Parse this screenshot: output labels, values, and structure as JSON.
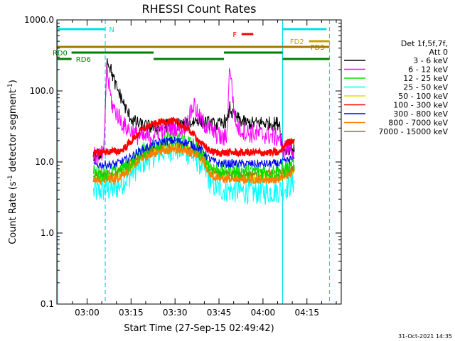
{
  "chart_data": {
    "type": "line",
    "title": "RHESSI Count Rates",
    "xlabel": "Start Time (27-Sep-15 02:49:42)",
    "ylabel_main": "Count Rate (s",
    "ylabel_sup1": "-1",
    "ylabel_mid": " detector segment",
    "ylabel_sup2": "-1",
    "ylabel_end": ")",
    "y_scale": "log",
    "ylim": [
      0.1,
      1000
    ],
    "xlim_minutes": [
      0,
      97
    ],
    "y_ticks": [
      {
        "value": 0.1,
        "label": "0.1"
      },
      {
        "value": 1,
        "label": "1.0"
      },
      {
        "value": 10,
        "label": "10.0"
      },
      {
        "value": 100,
        "label": "100.0"
      },
      {
        "value": 1000,
        "label": "1000.0"
      }
    ],
    "x_ticks": [
      {
        "minute": 10.3,
        "label": "03:00"
      },
      {
        "minute": 25.3,
        "label": "03:15"
      },
      {
        "minute": 40.3,
        "label": "03:30"
      },
      {
        "minute": 55.3,
        "label": "03:45"
      },
      {
        "minute": 70.3,
        "label": "04:00"
      },
      {
        "minute": 85.3,
        "label": "04:15"
      }
    ],
    "legend_header": [
      "Det 1f,5f,7f,",
      "Att 0"
    ],
    "legend_placement": "right",
    "series": [
      {
        "name": "3 - 6 keV",
        "color": "#000000",
        "points": [
          [
            12.5,
            12
          ],
          [
            13,
            13
          ],
          [
            15,
            12.5
          ],
          [
            16,
            13
          ],
          [
            17,
            280
          ],
          [
            18,
            230
          ],
          [
            20,
            120
          ],
          [
            22,
            80
          ],
          [
            24,
            50
          ],
          [
            26,
            38
          ],
          [
            28,
            34
          ],
          [
            30,
            32
          ],
          [
            32,
            31
          ],
          [
            34,
            30
          ],
          [
            36,
            31
          ],
          [
            38,
            33
          ],
          [
            40,
            35
          ],
          [
            42,
            34
          ],
          [
            44,
            33
          ],
          [
            46,
            36
          ],
          [
            48,
            40
          ],
          [
            50,
            36
          ],
          [
            52,
            35
          ],
          [
            54,
            33
          ],
          [
            56,
            34
          ],
          [
            57,
            38
          ],
          [
            58,
            35
          ],
          [
            59,
            60
          ],
          [
            60,
            45
          ],
          [
            62,
            40
          ],
          [
            64,
            36
          ],
          [
            66,
            35
          ],
          [
            68,
            35
          ],
          [
            70,
            36
          ],
          [
            72,
            35
          ],
          [
            76,
            35
          ],
          [
            77,
            15
          ],
          [
            80,
            16
          ],
          [
            81,
            14
          ]
        ]
      },
      {
        "name": "6 - 12 keV",
        "color": "#ff00ff",
        "points": [
          [
            12.5,
            12
          ],
          [
            16,
            12.5
          ],
          [
            17,
            220
          ],
          [
            18,
            100
          ],
          [
            19,
            60
          ],
          [
            21,
            45
          ],
          [
            23,
            32
          ],
          [
            25,
            28
          ],
          [
            27,
            24
          ],
          [
            29,
            22
          ],
          [
            31,
            22
          ],
          [
            33,
            25
          ],
          [
            35,
            28
          ],
          [
            37,
            30
          ],
          [
            39,
            32
          ],
          [
            41,
            31
          ],
          [
            43,
            30
          ],
          [
            45,
            40
          ],
          [
            46,
            55
          ],
          [
            47,
            65
          ],
          [
            48,
            45
          ],
          [
            50,
            35
          ],
          [
            52,
            30
          ],
          [
            54,
            25
          ],
          [
            56,
            22
          ],
          [
            57,
            21
          ],
          [
            58,
            24
          ],
          [
            59,
            250
          ],
          [
            60,
            80
          ],
          [
            61,
            35
          ],
          [
            62,
            30
          ],
          [
            64,
            27
          ],
          [
            66,
            25
          ],
          [
            68,
            25
          ],
          [
            70,
            24
          ],
          [
            72,
            24
          ],
          [
            75,
            22
          ],
          [
            76,
            23
          ],
          [
            77,
            15
          ],
          [
            80,
            16
          ],
          [
            81,
            14
          ]
        ]
      },
      {
        "name": "12 - 25 keV",
        "color": "#00e000",
        "points": [
          [
            12.5,
            7
          ],
          [
            16,
            7.2
          ],
          [
            20,
            7.5
          ],
          [
            24,
            9
          ],
          [
            28,
            13
          ],
          [
            32,
            17
          ],
          [
            36,
            20
          ],
          [
            38,
            21
          ],
          [
            40,
            22
          ],
          [
            42,
            21
          ],
          [
            44,
            20
          ],
          [
            46,
            18
          ],
          [
            48,
            15
          ],
          [
            50,
            12
          ],
          [
            52,
            9
          ],
          [
            54,
            8
          ],
          [
            56,
            7.5
          ],
          [
            58,
            7.5
          ],
          [
            60,
            7.5
          ],
          [
            64,
            7.5
          ],
          [
            68,
            7.5
          ],
          [
            72,
            7.5
          ],
          [
            76,
            7.5
          ],
          [
            80,
            8.5
          ],
          [
            81,
            9
          ]
        ]
      },
      {
        "name": "25 - 50 keV",
        "color": "#00ffff",
        "points": [
          [
            12.5,
            3.8
          ],
          [
            16,
            4.0
          ],
          [
            20,
            4.2
          ],
          [
            24,
            6
          ],
          [
            28,
            9
          ],
          [
            32,
            12
          ],
          [
            36,
            14
          ],
          [
            38,
            15
          ],
          [
            40,
            15.5
          ],
          [
            42,
            15
          ],
          [
            44,
            14
          ],
          [
            46,
            12.5
          ],
          [
            48,
            10.5
          ],
          [
            50,
            8.5
          ],
          [
            52,
            5.5
          ],
          [
            54,
            4.5
          ],
          [
            56,
            4.2
          ],
          [
            58,
            4.0
          ],
          [
            60,
            4.0
          ],
          [
            64,
            3.8
          ],
          [
            68,
            3.8
          ],
          [
            72,
            3.8
          ],
          [
            76,
            4.0
          ],
          [
            80,
            4.8
          ],
          [
            81,
            5.5
          ]
        ]
      },
      {
        "name": "50 - 100 keV",
        "color": "#e0e000",
        "points": [
          [
            12.5,
            6.2
          ],
          [
            16,
            6.2
          ],
          [
            20,
            6.3
          ],
          [
            24,
            8
          ],
          [
            28,
            11
          ],
          [
            32,
            14
          ],
          [
            36,
            16
          ],
          [
            40,
            17
          ],
          [
            44,
            16
          ],
          [
            48,
            13
          ],
          [
            52,
            8
          ],
          [
            56,
            6.5
          ],
          [
            60,
            6.3
          ],
          [
            64,
            6.2
          ],
          [
            68,
            6.2
          ],
          [
            72,
            6.2
          ],
          [
            76,
            6.3
          ],
          [
            80,
            7.5
          ],
          [
            81,
            8
          ]
        ]
      },
      {
        "name": "100 - 300 keV",
        "color": "#ff0000",
        "points": [
          [
            12.5,
            13
          ],
          [
            16,
            14
          ],
          [
            20,
            14
          ],
          [
            22,
            14.5
          ],
          [
            24,
            17
          ],
          [
            26,
            21
          ],
          [
            28,
            26
          ],
          [
            30,
            30
          ],
          [
            32,
            33
          ],
          [
            34,
            35
          ],
          [
            36,
            37
          ],
          [
            38,
            38
          ],
          [
            40,
            37
          ],
          [
            42,
            34
          ],
          [
            44,
            30
          ],
          [
            46,
            26
          ],
          [
            48,
            21
          ],
          [
            50,
            17
          ],
          [
            52,
            14.5
          ],
          [
            54,
            13.5
          ],
          [
            56,
            13.5
          ],
          [
            58,
            13.5
          ],
          [
            60,
            13.5
          ],
          [
            64,
            13.5
          ],
          [
            68,
            13.5
          ],
          [
            72,
            13.5
          ],
          [
            76,
            13.5
          ],
          [
            78,
            18
          ],
          [
            80,
            20
          ],
          [
            81,
            21
          ]
        ]
      },
      {
        "name": "300 - 800 keV",
        "color": "#0000ff",
        "points": [
          [
            12.5,
            9
          ],
          [
            16,
            9.2
          ],
          [
            20,
            9.3
          ],
          [
            24,
            11
          ],
          [
            28,
            14
          ],
          [
            32,
            17
          ],
          [
            36,
            19.5
          ],
          [
            40,
            20
          ],
          [
            44,
            19
          ],
          [
            48,
            16
          ],
          [
            50,
            14
          ],
          [
            52,
            11
          ],
          [
            54,
            10
          ],
          [
            56,
            9.5
          ],
          [
            60,
            9.5
          ],
          [
            64,
            9.4
          ],
          [
            68,
            9.4
          ],
          [
            72,
            9.4
          ],
          [
            76,
            9.5
          ],
          [
            80,
            11
          ],
          [
            81,
            11.5
          ]
        ]
      },
      {
        "name": "800 - 7000 keV",
        "color": "#ff8000",
        "points": [
          [
            12.5,
            5.6
          ],
          [
            16,
            5.7
          ],
          [
            20,
            5.8
          ],
          [
            24,
            7.5
          ],
          [
            28,
            10.5
          ],
          [
            32,
            13
          ],
          [
            36,
            14.5
          ],
          [
            40,
            15
          ],
          [
            44,
            14.5
          ],
          [
            48,
            12.5
          ],
          [
            50,
            11
          ],
          [
            52,
            7
          ],
          [
            54,
            6
          ],
          [
            56,
            5.8
          ],
          [
            60,
            5.8
          ],
          [
            64,
            5.7
          ],
          [
            68,
            5.7
          ],
          [
            72,
            5.7
          ],
          [
            76,
            5.8
          ],
          [
            80,
            7
          ],
          [
            81,
            7.5
          ]
        ]
      },
      {
        "name": "7000 - 15000 keV",
        "color": "#a07800",
        "points": [
          [
            12.5,
            6.8
          ],
          [
            16,
            6.9
          ],
          [
            20,
            7.0
          ],
          [
            24,
            9
          ],
          [
            28,
            12
          ],
          [
            32,
            15
          ],
          [
            36,
            17
          ],
          [
            40,
            17.5
          ],
          [
            44,
            17
          ],
          [
            48,
            14.5
          ],
          [
            50,
            12.5
          ],
          [
            52,
            8.5
          ],
          [
            54,
            7.2
          ],
          [
            56,
            7.0
          ],
          [
            60,
            7.0
          ],
          [
            64,
            6.9
          ],
          [
            68,
            6.9
          ],
          [
            72,
            6.9
          ],
          [
            76,
            7.0
          ],
          [
            80,
            8.2
          ],
          [
            81,
            8.7
          ]
        ]
      }
    ],
    "flag_bars": [
      {
        "label": "N",
        "color": "#00e0e0",
        "y": 0,
        "segments": [
          [
            0,
            16.5
          ],
          [
            77,
            92
          ]
        ],
        "label_at": 17.8
      },
      {
        "label": "F",
        "color": "#ff0000",
        "y": 1,
        "segments": [
          [
            63,
            67
          ]
        ],
        "label_at": 60
      },
      {
        "label": "FD2",
        "color": "#c8a000",
        "y": 2,
        "segments": [
          [
            86,
            93
          ]
        ],
        "label_at": 79.5
      },
      {
        "label": "FD3",
        "color": "#a07800",
        "y": 3,
        "segments": [
          [
            0,
            93
          ]
        ],
        "label_at": 86.5
      },
      {
        "label": "RD0",
        "color": "#008000",
        "y": 4,
        "segments": [
          [
            5,
            33
          ],
          [
            57,
            77
          ]
        ],
        "label_at": -1.5
      },
      {
        "label": "RD6",
        "color": "#008000",
        "y": 5,
        "segments": [
          [
            0,
            5
          ],
          [
            33,
            57
          ],
          [
            77,
            93
          ]
        ],
        "label_at": 6.5
      }
    ],
    "vertical_lines": [
      {
        "color": "#00e0e0",
        "minute": 0.2,
        "style": "solid"
      },
      {
        "color": "#00e0e0",
        "minute": 16.5,
        "style": "dashed"
      },
      {
        "color": "#00e0e0",
        "minute": 77.0,
        "style": "solid"
      },
      {
        "color": "#00e0e0",
        "minute": 93.0,
        "style": "dashed"
      }
    ]
  },
  "footer": {
    "timestamp": "31-Oct-2021 14:35"
  }
}
